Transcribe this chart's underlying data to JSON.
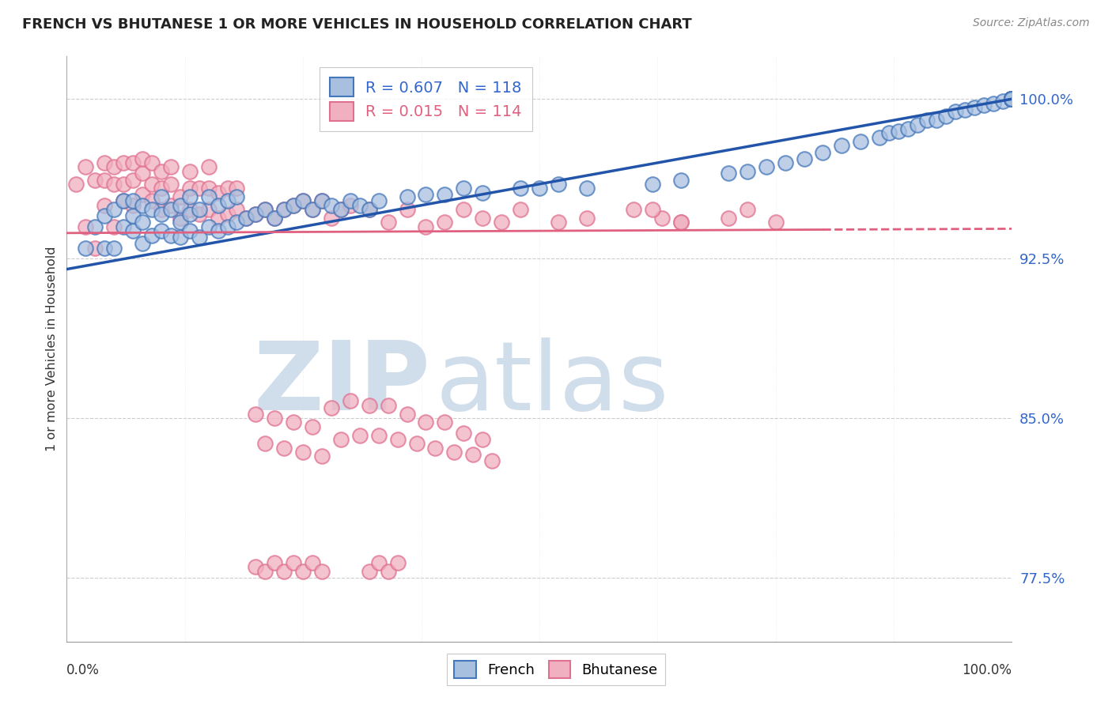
{
  "title": "FRENCH VS BHUTANESE 1 OR MORE VEHICLES IN HOUSEHOLD CORRELATION CHART",
  "source": "Source: ZipAtlas.com",
  "ylabel": "1 or more Vehicles in Household",
  "ytick_labels": [
    "77.5%",
    "85.0%",
    "92.5%",
    "100.0%"
  ],
  "ytick_values": [
    0.775,
    0.85,
    0.925,
    1.0
  ],
  "legend_french_R": 0.607,
  "legend_french_N": 118,
  "legend_bhutanese_R": 0.015,
  "legend_bhutanese_N": 114,
  "watermark_zip": "ZIP",
  "watermark_atlas": "atlas",
  "watermark_color": "#c8d8e8",
  "blue_face": "#a8c0e0",
  "blue_edge": "#4477bb",
  "pink_face": "#f0b0c0",
  "pink_edge": "#e07090",
  "blue_line_color": "#2255aa",
  "pink_line_color": "#e06080",
  "french_x": [
    0.02,
    0.03,
    0.04,
    0.04,
    0.05,
    0.05,
    0.06,
    0.06,
    0.07,
    0.07,
    0.07,
    0.08,
    0.08,
    0.08,
    0.09,
    0.09,
    0.1,
    0.1,
    0.1,
    0.11,
    0.11,
    0.12,
    0.12,
    0.12,
    0.13,
    0.13,
    0.13,
    0.14,
    0.14,
    0.15,
    0.15,
    0.16,
    0.16,
    0.17,
    0.17,
    0.18,
    0.18,
    0.19,
    0.2,
    0.21,
    0.22,
    0.23,
    0.24,
    0.25,
    0.26,
    0.27,
    0.28,
    0.29,
    0.3,
    0.31,
    0.32,
    0.33,
    0.36,
    0.38,
    0.4,
    0.42,
    0.44,
    0.48,
    0.5,
    0.52,
    0.55,
    0.62,
    0.65,
    0.7,
    0.72,
    0.74,
    0.76,
    0.78,
    0.8,
    0.82,
    0.84,
    0.86,
    0.87,
    0.88,
    0.89,
    0.9,
    0.91,
    0.92,
    0.93,
    0.94,
    0.95,
    0.96,
    0.97,
    0.98,
    0.99,
    1.0,
    1.0,
    1.0,
    1.0,
    1.0,
    1.0,
    1.0,
    1.0,
    1.0,
    1.0,
    1.0,
    1.0,
    1.0,
    1.0,
    1.0,
    1.0,
    1.0,
    1.0,
    1.0,
    1.0,
    1.0,
    1.0,
    1.0,
    1.0,
    1.0,
    1.0,
    1.0,
    1.0,
    1.0,
    1.0,
    1.0,
    1.0,
    1.0
  ],
  "french_y": [
    0.93,
    0.94,
    0.93,
    0.945,
    0.93,
    0.948,
    0.94,
    0.952,
    0.938,
    0.945,
    0.952,
    0.932,
    0.942,
    0.95,
    0.936,
    0.948,
    0.938,
    0.946,
    0.954,
    0.936,
    0.948,
    0.935,
    0.942,
    0.95,
    0.938,
    0.946,
    0.954,
    0.935,
    0.948,
    0.94,
    0.954,
    0.938,
    0.95,
    0.94,
    0.952,
    0.942,
    0.954,
    0.944,
    0.946,
    0.948,
    0.944,
    0.948,
    0.95,
    0.952,
    0.948,
    0.952,
    0.95,
    0.948,
    0.952,
    0.95,
    0.948,
    0.952,
    0.954,
    0.955,
    0.955,
    0.958,
    0.956,
    0.958,
    0.958,
    0.96,
    0.958,
    0.96,
    0.962,
    0.965,
    0.966,
    0.968,
    0.97,
    0.972,
    0.975,
    0.978,
    0.98,
    0.982,
    0.984,
    0.985,
    0.986,
    0.988,
    0.99,
    0.99,
    0.992,
    0.994,
    0.995,
    0.996,
    0.997,
    0.998,
    0.999,
    1.0,
    1.0,
    1.0,
    1.0,
    1.0,
    1.0,
    1.0,
    1.0,
    1.0,
    1.0,
    1.0,
    1.0,
    1.0,
    1.0,
    1.0,
    1.0,
    1.0,
    1.0,
    1.0,
    1.0,
    1.0,
    1.0,
    1.0,
    1.0,
    1.0,
    1.0,
    1.0,
    1.0,
    1.0,
    1.0,
    1.0,
    1.0,
    1.0
  ],
  "bhutanese_x": [
    0.01,
    0.02,
    0.02,
    0.03,
    0.03,
    0.04,
    0.04,
    0.04,
    0.05,
    0.05,
    0.05,
    0.06,
    0.06,
    0.06,
    0.07,
    0.07,
    0.07,
    0.08,
    0.08,
    0.08,
    0.09,
    0.09,
    0.09,
    0.1,
    0.1,
    0.1,
    0.11,
    0.11,
    0.11,
    0.12,
    0.12,
    0.13,
    0.13,
    0.13,
    0.14,
    0.14,
    0.15,
    0.15,
    0.15,
    0.16,
    0.16,
    0.17,
    0.17,
    0.18,
    0.18,
    0.19,
    0.2,
    0.21,
    0.22,
    0.23,
    0.24,
    0.25,
    0.26,
    0.27,
    0.28,
    0.29,
    0.3,
    0.32,
    0.34,
    0.36,
    0.38,
    0.4,
    0.42,
    0.44,
    0.46,
    0.48,
    0.52,
    0.55,
    0.6,
    0.63,
    0.65,
    0.62,
    0.65,
    0.7,
    0.72,
    0.75,
    0.28,
    0.29,
    0.3,
    0.31,
    0.32,
    0.33,
    0.34,
    0.35,
    0.36,
    0.37,
    0.38,
    0.39,
    0.4,
    0.41,
    0.42,
    0.43,
    0.44,
    0.45,
    0.2,
    0.21,
    0.22,
    0.23,
    0.24,
    0.25,
    0.26,
    0.27,
    0.2,
    0.21,
    0.22,
    0.23,
    0.24,
    0.25,
    0.26,
    0.27,
    0.32,
    0.33,
    0.34,
    0.35
  ],
  "bhutanese_y": [
    0.96,
    0.94,
    0.968,
    0.93,
    0.962,
    0.95,
    0.97,
    0.962,
    0.94,
    0.96,
    0.968,
    0.952,
    0.96,
    0.97,
    0.95,
    0.962,
    0.97,
    0.955,
    0.965,
    0.972,
    0.952,
    0.96,
    0.97,
    0.948,
    0.958,
    0.966,
    0.95,
    0.96,
    0.968,
    0.944,
    0.954,
    0.948,
    0.958,
    0.966,
    0.946,
    0.958,
    0.948,
    0.958,
    0.968,
    0.944,
    0.956,
    0.946,
    0.958,
    0.948,
    0.958,
    0.944,
    0.946,
    0.948,
    0.944,
    0.948,
    0.95,
    0.952,
    0.948,
    0.952,
    0.944,
    0.948,
    0.95,
    0.948,
    0.942,
    0.948,
    0.94,
    0.942,
    0.948,
    0.944,
    0.942,
    0.948,
    0.942,
    0.944,
    0.948,
    0.944,
    0.942,
    0.948,
    0.942,
    0.944,
    0.948,
    0.942,
    0.855,
    0.84,
    0.858,
    0.842,
    0.856,
    0.842,
    0.856,
    0.84,
    0.852,
    0.838,
    0.848,
    0.836,
    0.848,
    0.834,
    0.843,
    0.833,
    0.84,
    0.83,
    0.78,
    0.778,
    0.782,
    0.778,
    0.782,
    0.778,
    0.782,
    0.778,
    0.852,
    0.838,
    0.85,
    0.836,
    0.848,
    0.834,
    0.846,
    0.832,
    0.778,
    0.782,
    0.778,
    0.782
  ]
}
